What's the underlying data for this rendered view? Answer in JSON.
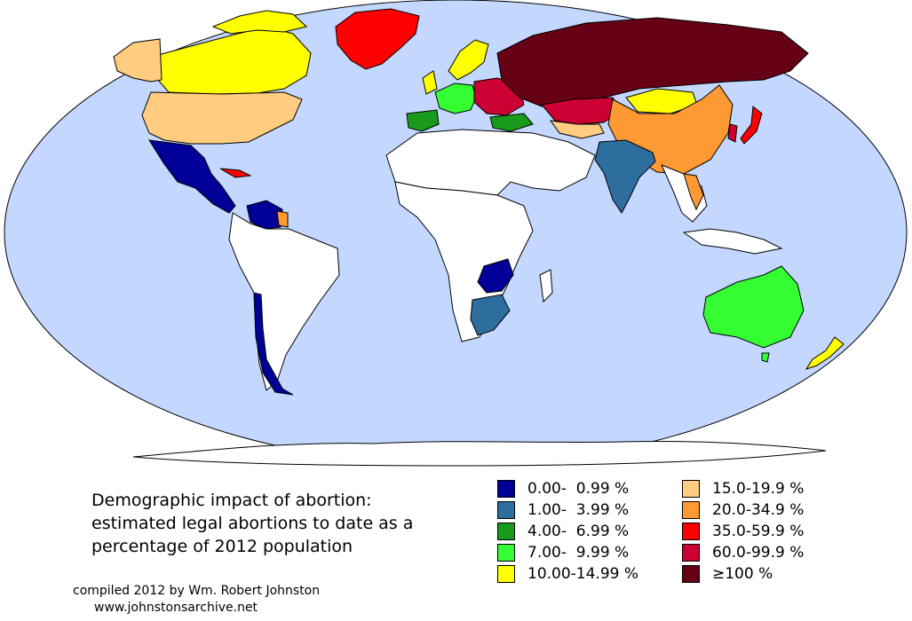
{
  "title_lines": [
    "Demographic impact of abortion:",
    "estimated legal abortions to date as a",
    "percentage of 2012 population"
  ],
  "legend": [
    {
      "label": "0.00-  0.99 %",
      "color": "#000099"
    },
    {
      "label": "1.00-  3.99 %",
      "color": "#2e6e9e"
    },
    {
      "label": "4.00-  6.99 %",
      "color": "#1a9a1a"
    },
    {
      "label": "7.00-  9.99 %",
      "color": "#33ff33"
    },
    {
      "label": "10.00-14.99 %",
      "color": "#ffff00"
    },
    {
      "label": "15.0-19.9 %",
      "color": "#ffcc80"
    },
    {
      "label": "20.0-34.9 %",
      "color": "#ff9933"
    },
    {
      "label": "35.0-59.9 %",
      "color": "#ff0000"
    },
    {
      "label": "60.0-99.9 %",
      "color": "#cc0033"
    },
    {
      "label": "≥100 %",
      "color": "#660015"
    }
  ],
  "credit": {
    "line1": "compiled 2012 by Wm. Robert Johnston",
    "line2": "www.johnstonsarchive.net"
  },
  "colors": {
    "ocean": "#c3d7ff",
    "no_data": "#ffffff",
    "border": "#000000"
  }
}
